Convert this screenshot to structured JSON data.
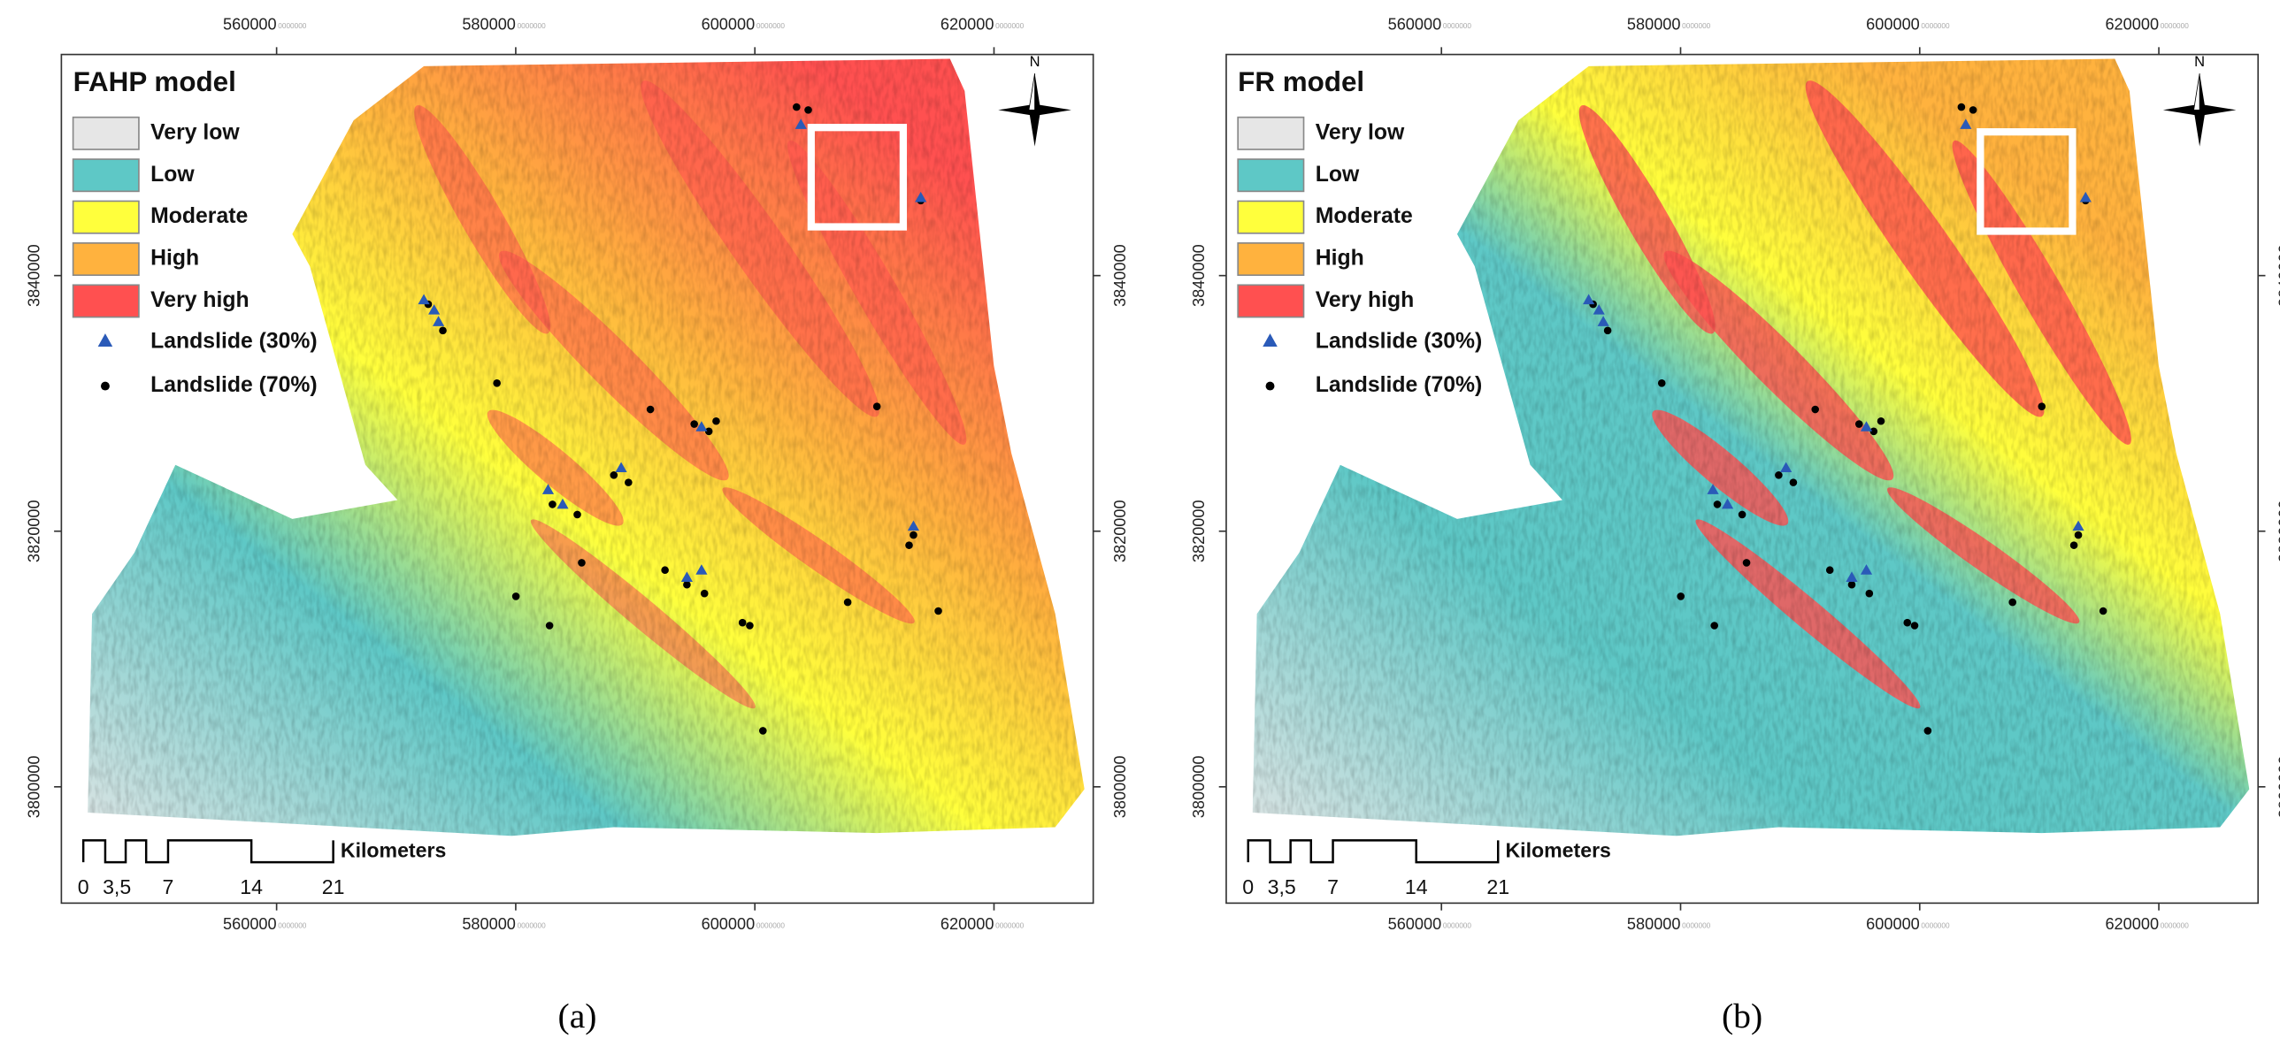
{
  "panels": [
    {
      "caption": "(a)",
      "title": "FAHP model",
      "legend": [
        {
          "label": "Very low",
          "color": "#e6e6e6"
        },
        {
          "label": "Low",
          "color": "#5ec8c6"
        },
        {
          "label": "Moderate",
          "color": "#ffff3c"
        },
        {
          "label": "High",
          "color": "#ffb23e"
        },
        {
          "label": "Very high",
          "color": "#ff5050"
        }
      ],
      "landslide_test": "Landslide (30%)",
      "landslide_train": "Landslide (70%)",
      "north": "N",
      "scale_bar": {
        "labels": [
          "0",
          "3,5",
          "7",
          "14",
          "21"
        ],
        "unit": "Kilometers"
      },
      "xlim": [
        542000,
        628300
      ],
      "ylim": [
        3790900,
        3857300
      ],
      "x_ticks": [
        560000,
        580000,
        600000,
        620000
      ],
      "y_ticks": [
        3800000,
        3820000,
        3840000
      ]
    },
    {
      "caption": "(b)",
      "title": "FR model",
      "legend": [
        {
          "label": "Very low",
          "color": "#e6e6e6"
        },
        {
          "label": "Low",
          "color": "#5ec8c6"
        },
        {
          "label": "Moderate",
          "color": "#ffff3c"
        },
        {
          "label": "High",
          "color": "#ffb23e"
        },
        {
          "label": "Very high",
          "color": "#ff5050"
        }
      ],
      "landslide_test": "Landslide (30%)",
      "landslide_train": "Landslide (70%)",
      "north": "N",
      "scale_bar": {
        "labels": [
          "0",
          "3,5",
          "7",
          "14",
          "21"
        ],
        "unit": "Kilometers"
      },
      "xlim": [
        542000,
        628300
      ],
      "ylim": [
        3790900,
        3857300
      ],
      "x_ticks": [
        560000,
        580000,
        600000,
        620000
      ],
      "y_ticks": [
        3800000,
        3820000,
        3840000
      ]
    }
  ],
  "tick_suffix": "0000000"
}
